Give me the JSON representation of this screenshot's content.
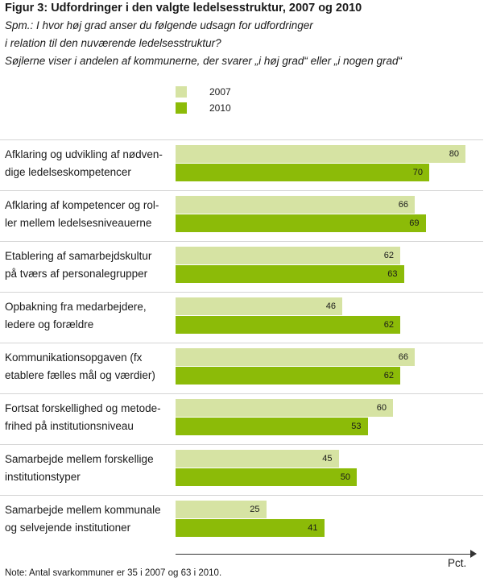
{
  "header": {
    "title": "Figur 3: Udfordringer i den valgte ledelsesstruktur, 2007 og 2010",
    "subtitle_lines": [
      "Spm.: I hvor høj grad anser du følgende udsagn for udfordringer",
      "i relation til den nuværende ledelsesstruktur?",
      "Søjlerne viser i andelen af kommunerne, der svarer „i høj grad“ eller „i nogen grad“"
    ]
  },
  "chart_data": {
    "type": "bar",
    "orientation": "horizontal",
    "categories": [
      "Afklaring og udvikling af nødven- dige ledelseskompetencer",
      "Afklaring af kompetencer og rol- ler mellem ledelsesniveauerne",
      "Etablering af samarbejdskultur på tværs af personalegrupper",
      "Opbakning fra medarbejdere, ledere og forældre",
      "Kommunikationsopgaven (fx etablere fælles mål og værdier)",
      "Fortsat forskellighed og metode- frihed på institutionsniveau",
      "Samarbejde mellem forskellige institutionstyper",
      "Samarbejde mellem kommunale og selvejende institutioner"
    ],
    "category_lines": [
      [
        "Afklaring og udvikling af nødven-",
        "dige ledelseskompetencer"
      ],
      [
        "Afklaring af kompetencer og rol-",
        "ler mellem ledelsesniveauerne"
      ],
      [
        "Etablering af samarbejdskultur",
        "på tværs af personalegrupper"
      ],
      [
        "Opbakning fra medarbejdere,",
        "ledere og forældre"
      ],
      [
        "Kommunikationsopgaven (fx",
        "etablere fælles mål og værdier)"
      ],
      [
        "Fortsat forskellighed og metode-",
        "frihed på institutionsniveau"
      ],
      [
        "Samarbejde mellem forskellige",
        "institutionstyper"
      ],
      [
        "Samarbejde mellem kommunale",
        "og selvejende institutioner"
      ]
    ],
    "series": [
      {
        "name": "2007",
        "color": "#d6e3a3",
        "values": [
          80,
          66,
          62,
          46,
          66,
          60,
          45,
          25
        ]
      },
      {
        "name": "2010",
        "color": "#8cbb08",
        "values": [
          70,
          69,
          63,
          62,
          62,
          53,
          50,
          41
        ]
      }
    ],
    "xlabel": "Pct.",
    "xlim": [
      0,
      100
    ],
    "grid": false,
    "legend_position": "top",
    "data_labels": true
  },
  "note": "Note: Antal svarkommuner er 35 i 2007 og 63 i 2010."
}
